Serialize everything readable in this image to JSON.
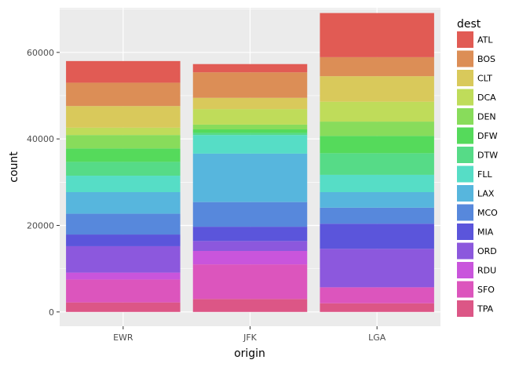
{
  "chart_data": {
    "type": "bar",
    "stacked": true,
    "categories": [
      "EWR",
      "JFK",
      "LGA"
    ],
    "xlabel": "origin",
    "ylabel": "count",
    "ylim": [
      -3300,
      70300
    ],
    "yticks": [
      0,
      20000,
      40000,
      60000
    ],
    "ytick_labels": [
      "0",
      "20000",
      "40000",
      "60000"
    ],
    "grid": true,
    "legend": {
      "title": "dest",
      "position": "right"
    },
    "stack_order_bottom_to_top": [
      "TPA",
      "SFO",
      "RDU",
      "ORD",
      "MIA",
      "MCO",
      "LAX",
      "FLL",
      "DTW",
      "DFW",
      "DEN",
      "DCA",
      "CLT",
      "BOS",
      "ATL"
    ],
    "series": [
      {
        "name": "ATL",
        "color": "#e15b54",
        "values": [
          5000,
          1900,
          10200
        ]
      },
      {
        "name": "BOS",
        "color": "#dc8e56",
        "values": [
          5400,
          5900,
          4400
        ]
      },
      {
        "name": "CLT",
        "color": "#d9c95b",
        "values": [
          5000,
          2600,
          5900
        ]
      },
      {
        "name": "DCA",
        "color": "#bfdc5a",
        "values": [
          1700,
          3600,
          4600
        ]
      },
      {
        "name": "DEN",
        "color": "#88dc5b",
        "values": [
          3100,
          1100,
          3300
        ]
      },
      {
        "name": "DFW",
        "color": "#55da5b",
        "values": [
          3100,
          800,
          4000
        ]
      },
      {
        "name": "DTW",
        "color": "#56db87",
        "values": [
          3200,
          500,
          5000
        ]
      },
      {
        "name": "FLL",
        "color": "#56ddc6",
        "values": [
          3800,
          4300,
          4000
        ]
      },
      {
        "name": "LAX",
        "color": "#57b6dd",
        "values": [
          5000,
          11200,
          3600
        ]
      },
      {
        "name": "MCO",
        "color": "#5788dc",
        "values": [
          4800,
          5700,
          3700
        ]
      },
      {
        "name": "MIA",
        "color": "#5b55db",
        "values": [
          2700,
          3300,
          5800
        ]
      },
      {
        "name": "ORD",
        "color": "#8c58dd",
        "values": [
          6100,
          2300,
          8900
        ]
      },
      {
        "name": "RDU",
        "color": "#c955dc",
        "values": [
          1600,
          3100,
          0
        ]
      },
      {
        "name": "SFO",
        "color": "#dc55bd",
        "values": [
          5300,
          8000,
          3700
        ]
      },
      {
        "name": "TPA",
        "color": "#dc5686",
        "values": [
          2200,
          3000,
          2000
        ]
      }
    ]
  }
}
